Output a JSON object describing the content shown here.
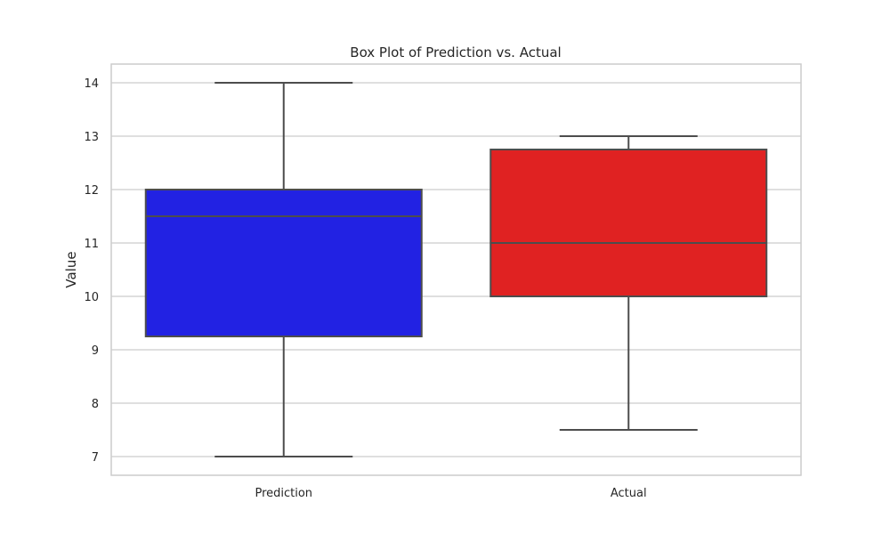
{
  "chart_data": {
    "type": "box",
    "title": "Box Plot of Prediction vs. Actual",
    "xlabel": "",
    "ylabel": "Value",
    "ylim": [
      6.65,
      14.35
    ],
    "yticks": [
      7,
      8,
      9,
      10,
      11,
      12,
      13,
      14
    ],
    "grid": true,
    "categories": [
      "Prediction",
      "Actual"
    ],
    "boxes": [
      {
        "category": "Prediction",
        "whisker_low": 7,
        "q1": 9.25,
        "median": 11.5,
        "q3": 12,
        "whisker_high": 14,
        "color": "#2222e3"
      },
      {
        "category": "Actual",
        "whisker_low": 7.5,
        "q1": 10,
        "median": 11,
        "q3": 12.75,
        "whisker_high": 13,
        "color": "#e02222"
      }
    ]
  },
  "colors": {
    "grid": "#cccccc",
    "frame": "#cccccc",
    "box_edge": "#4d4d4d"
  }
}
